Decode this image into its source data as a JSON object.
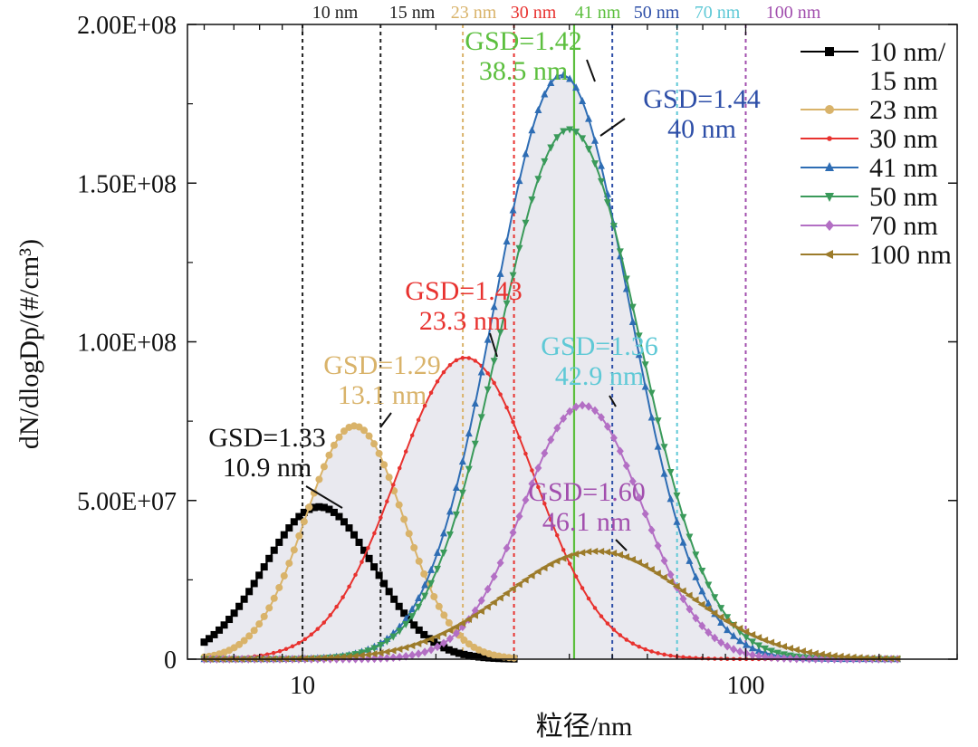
{
  "chart_data": {
    "type": "line",
    "xlabel": "粒径/nm",
    "ylabel": "dN/dlogDp/(#/cm³)",
    "x_scale": "log",
    "xlim": [
      5.5,
      300
    ],
    "ylim": [
      0,
      200000000
    ],
    "x_tick_labels": [
      {
        "value": 10,
        "label": "10"
      },
      {
        "value": 100,
        "label": "100"
      }
    ],
    "y_tick_labels": [
      {
        "value": 0,
        "label": "0"
      },
      {
        "value": 50000000,
        "label": "5.00E+07"
      },
      {
        "value": 100000000,
        "label": "1.00E+08"
      },
      {
        "value": 150000000,
        "label": "1.50E+08"
      },
      {
        "value": 200000000,
        "label": "2.00E+08"
      }
    ],
    "grid": false,
    "legend_position": "top-right",
    "series": [
      {
        "name": "10 nm/\n15 nm",
        "color": "#000000",
        "marker": "square",
        "median_nm": 10.9,
        "gsd": 1.33,
        "peak": 48000000,
        "x_range": [
          6,
          30
        ]
      },
      {
        "name": "23 nm",
        "color": "#d9b36a",
        "marker": "circle",
        "median_nm": 13.1,
        "gsd": 1.29,
        "peak": 73500000,
        "x_range": [
          6,
          30
        ]
      },
      {
        "name": "30 nm",
        "color": "#e8322f",
        "marker": "dot",
        "median_nm": 23.3,
        "gsd": 1.43,
        "peak": 95000000,
        "x_range": [
          6,
          220
        ]
      },
      {
        "name": "41 nm",
        "color": "#2e6db4",
        "marker": "triangle-up",
        "median_nm": 38.5,
        "gsd": 1.42,
        "peak": 184000000,
        "x_range": [
          6,
          220
        ]
      },
      {
        "name": "50 nm",
        "color": "#3a9a5a",
        "marker": "triangle-down",
        "median_nm": 40,
        "gsd": 1.44,
        "peak": 167000000,
        "x_range": [
          6,
          220
        ]
      },
      {
        "name": "70 nm",
        "color": "#b36fc4",
        "marker": "diamond",
        "median_nm": 42.9,
        "gsd": 1.36,
        "peak": 80000000,
        "x_range": [
          6,
          220
        ]
      },
      {
        "name": "100 nm",
        "color": "#9c7b2a",
        "marker": "triangle-left",
        "median_nm": 46.1,
        "gsd": 1.6,
        "peak": 34000000,
        "x_range": [
          6,
          220
        ]
      }
    ],
    "vertical_lines": [
      {
        "x": 10,
        "label": "10 nm",
        "color": "#222222",
        "style": "dotted"
      },
      {
        "x": 15,
        "label": "15 nm",
        "color": "#222222",
        "style": "dotted"
      },
      {
        "x": 23,
        "label": "23 nm",
        "color": "#d9b36a",
        "style": "dotted"
      },
      {
        "x": 30,
        "label": "30 nm",
        "color": "#e8322f",
        "style": "dotted"
      },
      {
        "x": 41,
        "label": "41 nm",
        "color": "#5cbf3e",
        "style": "solid"
      },
      {
        "x": 50,
        "label": "50 nm",
        "color": "#2e4fa8",
        "style": "dotted"
      },
      {
        "x": 70,
        "label": "70 nm",
        "color": "#5fc9d6",
        "style": "dotted"
      },
      {
        "x": 100,
        "label": "100 nm",
        "color": "#a24fae",
        "style": "dotted"
      }
    ],
    "annotations": [
      {
        "line1": "GSD=1.33",
        "line2": "10.9 nm",
        "color": "#111111",
        "x": 10.9,
        "y": 48000000
      },
      {
        "line1": "GSD=1.29",
        "line2": "13.1 nm",
        "color": "#d9b36a",
        "x": 13.1,
        "y": 73500000
      },
      {
        "line1": "GSD=1.43",
        "line2": "23.3 nm",
        "color": "#e8322f",
        "x": 23.3,
        "y": 95000000
      },
      {
        "line1": "GSD=1.42",
        "line2": "38.5 nm",
        "color": "#5cbf3e",
        "x": 38.5,
        "y": 184000000
      },
      {
        "line1": "GSD=1.44",
        "line2": "40 nm",
        "color": "#2e4fa8",
        "x": 40,
        "y": 167000000
      },
      {
        "line1": "GSD=1.36",
        "line2": "42.9 nm",
        "color": "#5fc9d6",
        "x": 42.9,
        "y": 80000000
      },
      {
        "line1": "GSD=1.60",
        "line2": "46.1 nm",
        "color": "#a24fae",
        "x": 46.1,
        "y": 34000000
      }
    ]
  }
}
